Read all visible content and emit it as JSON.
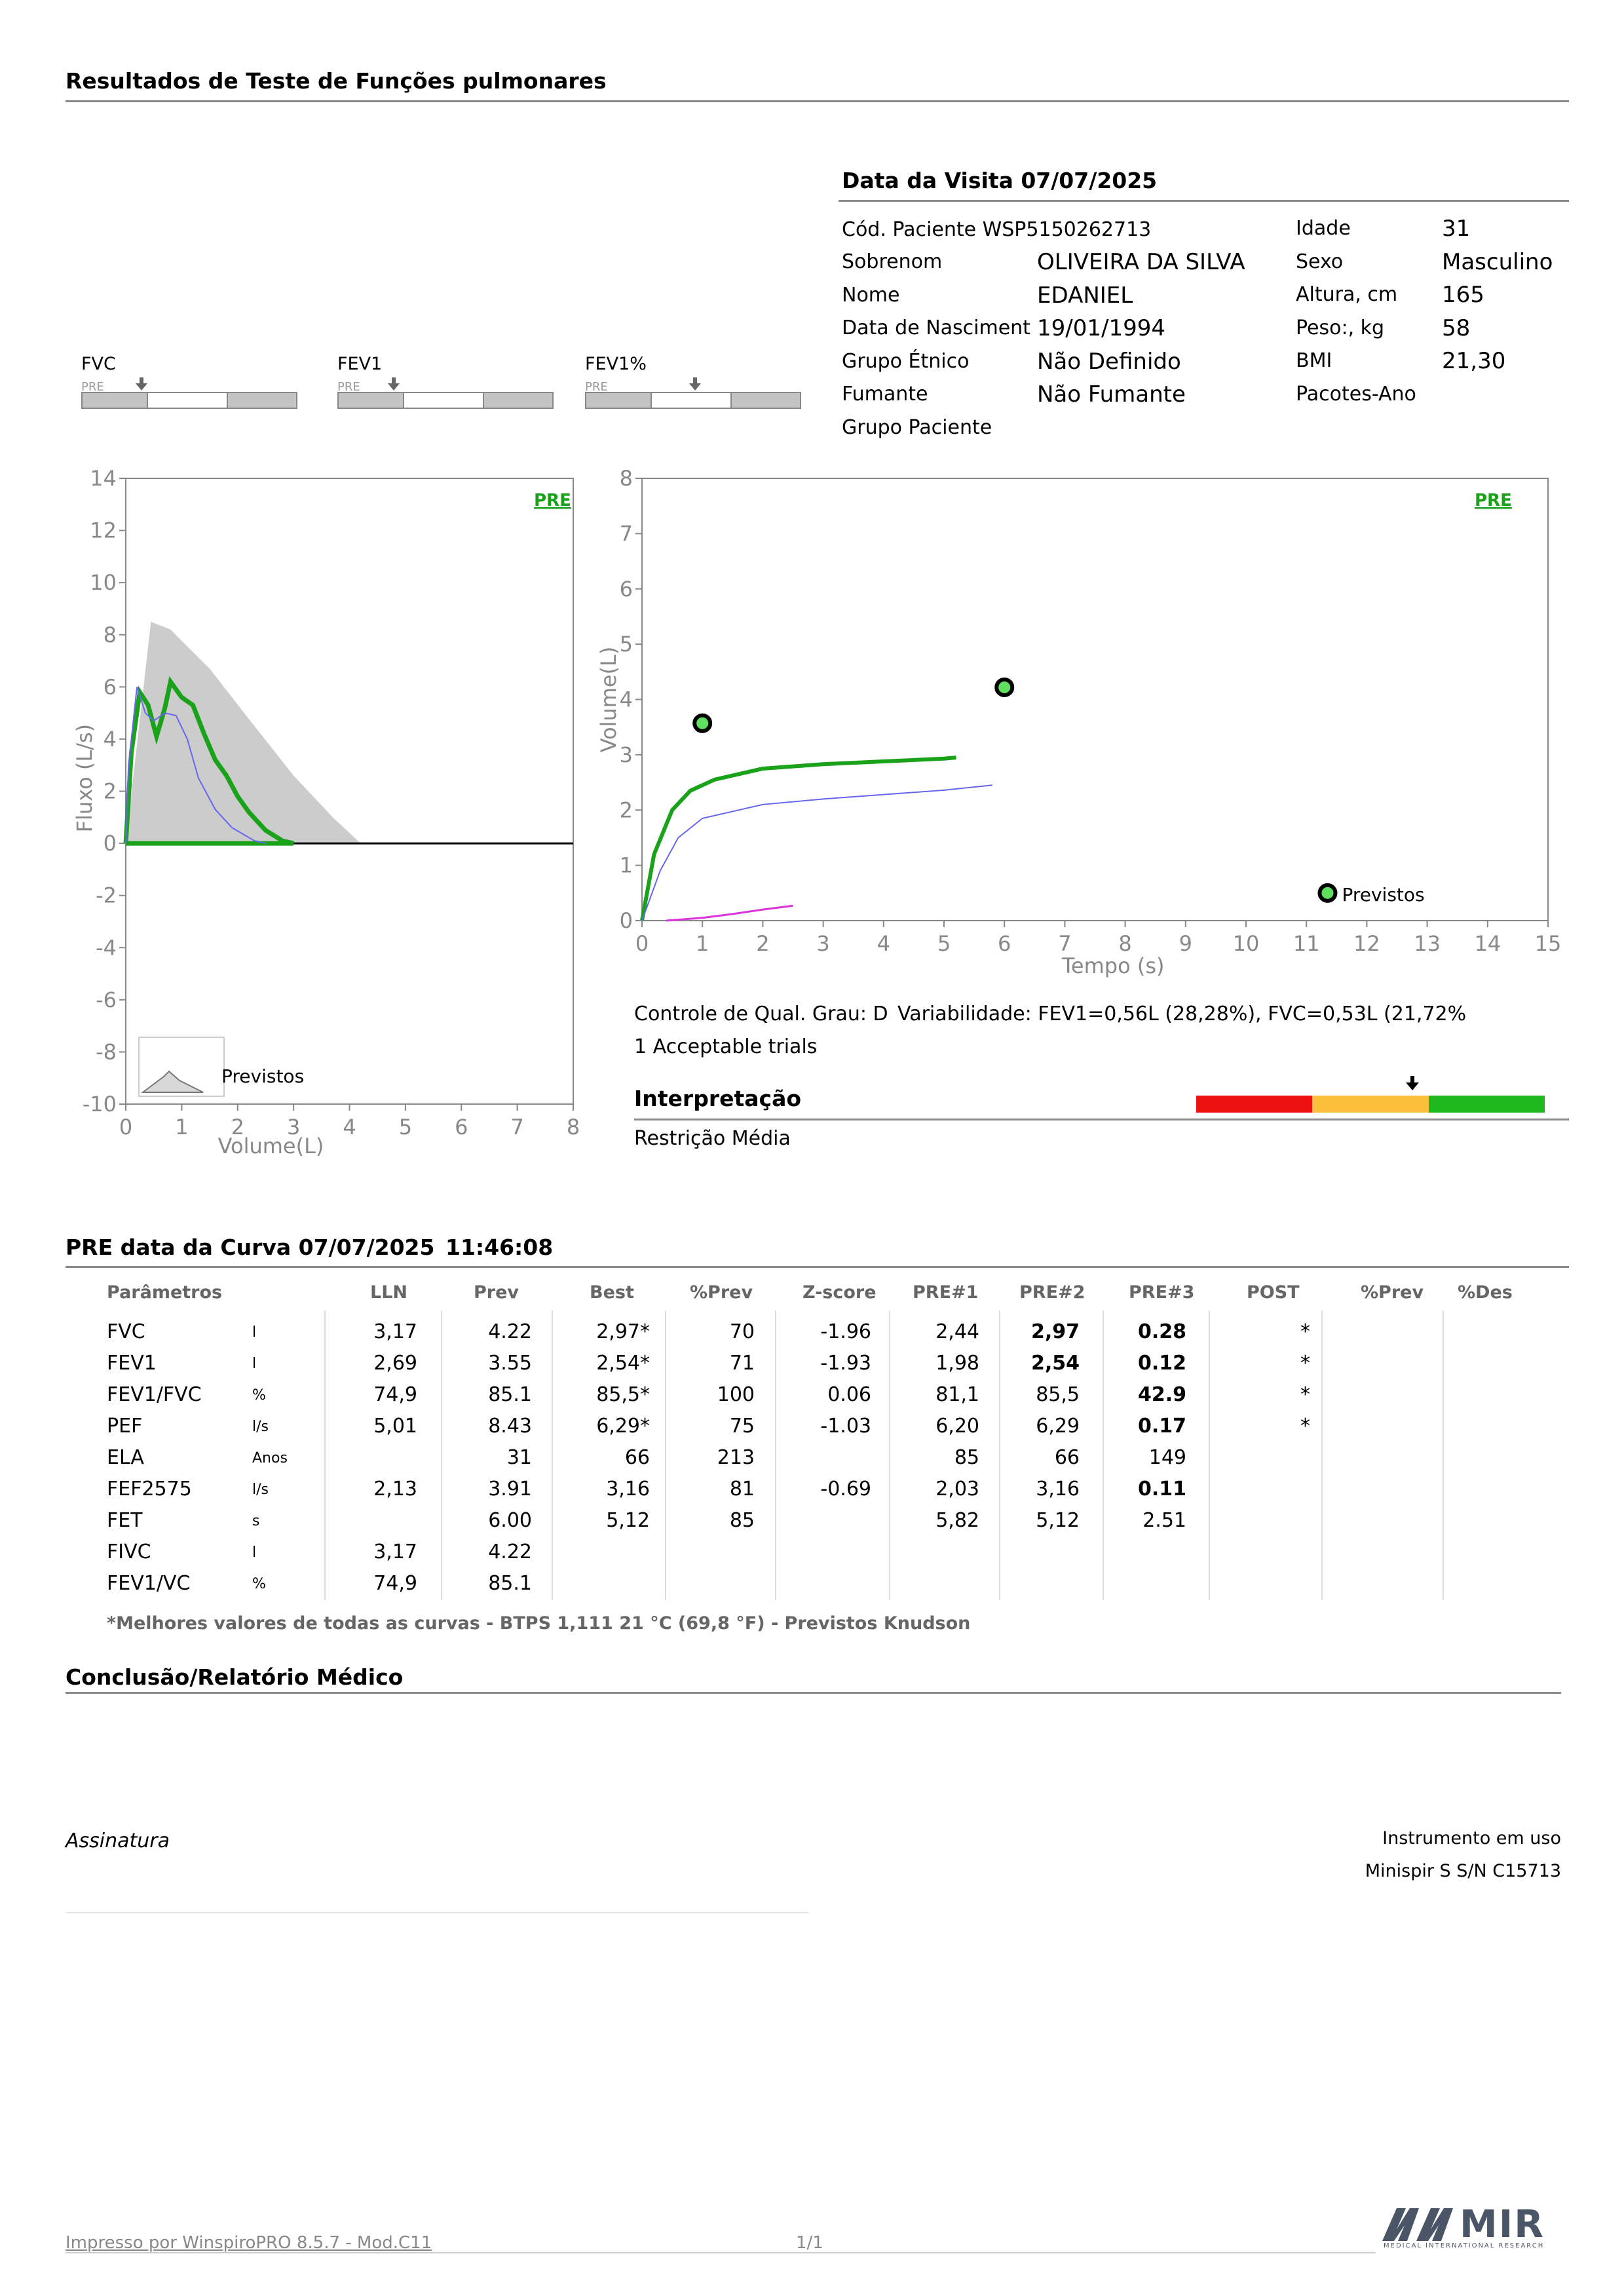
{
  "header": {
    "title": "Resultados de Teste de Funções pulmonares"
  },
  "visit": {
    "title": "Data da Visita 07/07/2025",
    "code": "Cód. Paciente WSP5150262713",
    "left": [
      {
        "label": "Sobrenom",
        "value": "OLIVEIRA DA SILVA"
      },
      {
        "label": "Nome",
        "value": "EDANIEL"
      },
      {
        "label": "Data de Nasciment",
        "value": "19/01/1994"
      },
      {
        "label": "Grupo Étnico",
        "value": "Não Definido"
      },
      {
        "label": "Fumante",
        "value": "Não Fumante"
      },
      {
        "label": "Grupo Paciente",
        "value": ""
      }
    ],
    "right": [
      {
        "label": "Idade",
        "value": "31"
      },
      {
        "label": "Sexo",
        "value": "Masculino"
      },
      {
        "label": "Altura, cm",
        "value": "165"
      },
      {
        "label": "Peso:, kg",
        "value": "58"
      },
      {
        "label": "BMI",
        "value": "21,30"
      },
      {
        "label": "Pacotes-Ano",
        "value": ""
      }
    ]
  },
  "zscore_bars": [
    {
      "label": "FVC",
      "tag": "PRE",
      "marker": 0.28
    },
    {
      "label": "FEV1",
      "tag": "PRE",
      "marker": 0.26
    },
    {
      "label": "FEV1%",
      "tag": "PRE",
      "marker": 0.51
    }
  ],
  "chart_data": [
    {
      "type": "line",
      "tag": "PRE",
      "xlabel": "Volume(L)",
      "ylabel": "Fluxo (L/s)",
      "xlim": [
        0,
        8
      ],
      "ylim": [
        -10,
        14
      ],
      "xticks": [
        "0",
        "1",
        "2",
        "3",
        "4",
        "5",
        "6",
        "7",
        "8"
      ],
      "yticks": [
        "14",
        "12",
        "10",
        "8",
        "6",
        "4",
        "2",
        "0",
        "-2",
        "-4",
        "-6",
        "-8",
        "-10"
      ],
      "legend": "Previstos",
      "predicted_area": [
        [
          0,
          0
        ],
        [
          0.45,
          8.5
        ],
        [
          0.8,
          8.2
        ],
        [
          1.5,
          6.7
        ],
        [
          2.3,
          4.5
        ],
        [
          3.0,
          2.6
        ],
        [
          3.7,
          1.0
        ],
        [
          4.2,
          0
        ]
      ],
      "series": [
        {
          "color": "#1aa31a",
          "points": [
            [
              0,
              0
            ],
            [
              0.1,
              3.5
            ],
            [
              0.25,
              5.8
            ],
            [
              0.4,
              5.3
            ],
            [
              0.55,
              4.1
            ],
            [
              0.7,
              5.2
            ],
            [
              0.8,
              6.2
            ],
            [
              1.0,
              5.6
            ],
            [
              1.2,
              5.3
            ],
            [
              1.4,
              4.2
            ],
            [
              1.6,
              3.2
            ],
            [
              1.8,
              2.6
            ],
            [
              2.0,
              1.8
            ],
            [
              2.2,
              1.2
            ],
            [
              2.5,
              0.5
            ],
            [
              2.8,
              0.1
            ],
            [
              3.0,
              0
            ]
          ]
        },
        {
          "color": "#6666ee",
          "points": [
            [
              0,
              0
            ],
            [
              0.05,
              3.0
            ],
            [
              0.2,
              6.0
            ],
            [
              0.35,
              5.0
            ],
            [
              0.5,
              4.7
            ],
            [
              0.7,
              5.0
            ],
            [
              0.9,
              4.9
            ],
            [
              1.1,
              4.0
            ],
            [
              1.3,
              2.5
            ],
            [
              1.6,
              1.3
            ],
            [
              1.9,
              0.6
            ],
            [
              2.3,
              0.1
            ],
            [
              2.5,
              0
            ]
          ]
        }
      ]
    },
    {
      "type": "line",
      "tag": "PRE",
      "xlabel": "Tempo (s)",
      "ylabel": "Volume(L)",
      "xlim": [
        0,
        15
      ],
      "ylim": [
        0,
        8
      ],
      "xticks": [
        "0",
        "1",
        "2",
        "3",
        "4",
        "5",
        "6",
        "7",
        "8",
        "9",
        "10",
        "11",
        "12",
        "13",
        "14",
        "15"
      ],
      "yticks": [
        "8",
        "7",
        "6",
        "5",
        "4",
        "3",
        "2",
        "1",
        "0"
      ],
      "legend": "Previstos",
      "predicted_points": [
        [
          1.0,
          3.57
        ],
        [
          6.0,
          4.22
        ],
        [
          11.35,
          0.5
        ]
      ],
      "series": [
        {
          "color": "#1aa31a",
          "points": [
            [
              0,
              0
            ],
            [
              0.2,
              1.2
            ],
            [
              0.5,
              2.0
            ],
            [
              0.8,
              2.35
            ],
            [
              1.2,
              2.55
            ],
            [
              2,
              2.75
            ],
            [
              3,
              2.83
            ],
            [
              4,
              2.88
            ],
            [
              5,
              2.93
            ],
            [
              5.2,
              2.95
            ]
          ]
        },
        {
          "color": "#6666ee",
          "points": [
            [
              0,
              0
            ],
            [
              0.3,
              0.9
            ],
            [
              0.6,
              1.5
            ],
            [
              1,
              1.85
            ],
            [
              2,
              2.1
            ],
            [
              3,
              2.2
            ],
            [
              4,
              2.28
            ],
            [
              5,
              2.36
            ],
            [
              5.8,
              2.45
            ]
          ]
        },
        {
          "color": "#dd33dd",
          "points": [
            [
              0.4,
              0
            ],
            [
              1,
              0.05
            ],
            [
              1.5,
              0.12
            ],
            [
              2,
              0.2
            ],
            [
              2.5,
              0.27
            ]
          ]
        }
      ]
    }
  ],
  "quality": {
    "grade": "Controle de Qual. Grau: D",
    "variability": "Variabilidade: FEV1=0,56L (28,28%), FVC=0,53L (21,72%",
    "trials": "1 Acceptable trials"
  },
  "interpretation": {
    "title": "Interpretação",
    "text": "Restrição Média",
    "marker": 0.62
  },
  "curve": {
    "title": "PRE data da Curva 07/07/2025",
    "time": "11:46:08",
    "headers": [
      "Parâmetros",
      "LLN",
      "Prev",
      "Best",
      "%Prev",
      "Z-score",
      "PRE#1",
      "PRE#2",
      "PRE#3",
      "POST",
      "%Prev",
      "%Des"
    ],
    "rows": [
      {
        "param": "FVC",
        "unit": "l",
        "lln": "3,17",
        "prev": "4.22",
        "best": "2,97*",
        "pprev": "70",
        "z": "-1.96",
        "p1": "2,44",
        "p2": "2,97",
        "p3": "0.28",
        "post": "*",
        "p2b": true,
        "p3b": true
      },
      {
        "param": "FEV1",
        "unit": "l",
        "lln": "2,69",
        "prev": "3.55",
        "best": "2,54*",
        "pprev": "71",
        "z": "-1.93",
        "p1": "1,98",
        "p2": "2,54",
        "p3": "0.12",
        "post": "*",
        "p2b": true,
        "p3b": true
      },
      {
        "param": "FEV1/FVC",
        "unit": "%",
        "lln": "74,9",
        "prev": "85.1",
        "best": "85,5*",
        "pprev": "100",
        "z": "0.06",
        "p1": "81,1",
        "p2": "85,5",
        "p3": "42.9",
        "post": "*",
        "p2b": false,
        "p3b": true
      },
      {
        "param": "PEF",
        "unit": "l/s",
        "lln": "5,01",
        "prev": "8.43",
        "best": "6,29*",
        "pprev": "75",
        "z": "-1.03",
        "p1": "6,20",
        "p2": "6,29",
        "p3": "0.17",
        "post": "*",
        "p2b": false,
        "p3b": true
      },
      {
        "param": "ELA",
        "unit": "Anos",
        "lln": "",
        "prev": "31",
        "best": "66",
        "pprev": "213",
        "z": "",
        "p1": "85",
        "p2": "66",
        "p3": "149",
        "post": "",
        "p2b": false,
        "p3b": false
      },
      {
        "param": "FEF2575",
        "unit": "l/s",
        "lln": "2,13",
        "prev": "3.91",
        "best": "3,16",
        "pprev": "81",
        "z": "-0.69",
        "p1": "2,03",
        "p2": "3,16",
        "p3": "0.11",
        "post": "",
        "p2b": false,
        "p3b": true
      },
      {
        "param": "FET",
        "unit": "s",
        "lln": "",
        "prev": "6.00",
        "best": "5,12",
        "pprev": "85",
        "z": "",
        "p1": "5,82",
        "p2": "5,12",
        "p3": "2.51",
        "post": "",
        "p2b": false,
        "p3b": false
      },
      {
        "param": "FIVC",
        "unit": "l",
        "lln": "3,17",
        "prev": "4.22",
        "best": "",
        "pprev": "",
        "z": "",
        "p1": "",
        "p2": "",
        "p3": "",
        "post": "",
        "p2b": false,
        "p3b": false
      },
      {
        "param": "FEV1/VC",
        "unit": "%",
        "lln": "74,9",
        "prev": "85.1",
        "best": "",
        "pprev": "",
        "z": "",
        "p1": "",
        "p2": "",
        "p3": "",
        "post": "",
        "p2b": false,
        "p3b": false
      }
    ],
    "footnote": "*Melhores valores de todas as curvas - BTPS  1,111  21 °C  (69,8 °F) - Previstos Knudson"
  },
  "conclusion": {
    "title": "Conclusão/Relatório Médico"
  },
  "signature": {
    "label": "Assinatura"
  },
  "instrument": {
    "label": "Instrumento em uso",
    "device": "Minispir S S/N C15713"
  },
  "footer": {
    "printed": "Impresso por WinspiroPRO  8.5.7 - Mod.C11",
    "page": "1/1",
    "logo": "MIR",
    "logo_sub": "MEDICAL INTERNATIONAL RESEARCH"
  }
}
